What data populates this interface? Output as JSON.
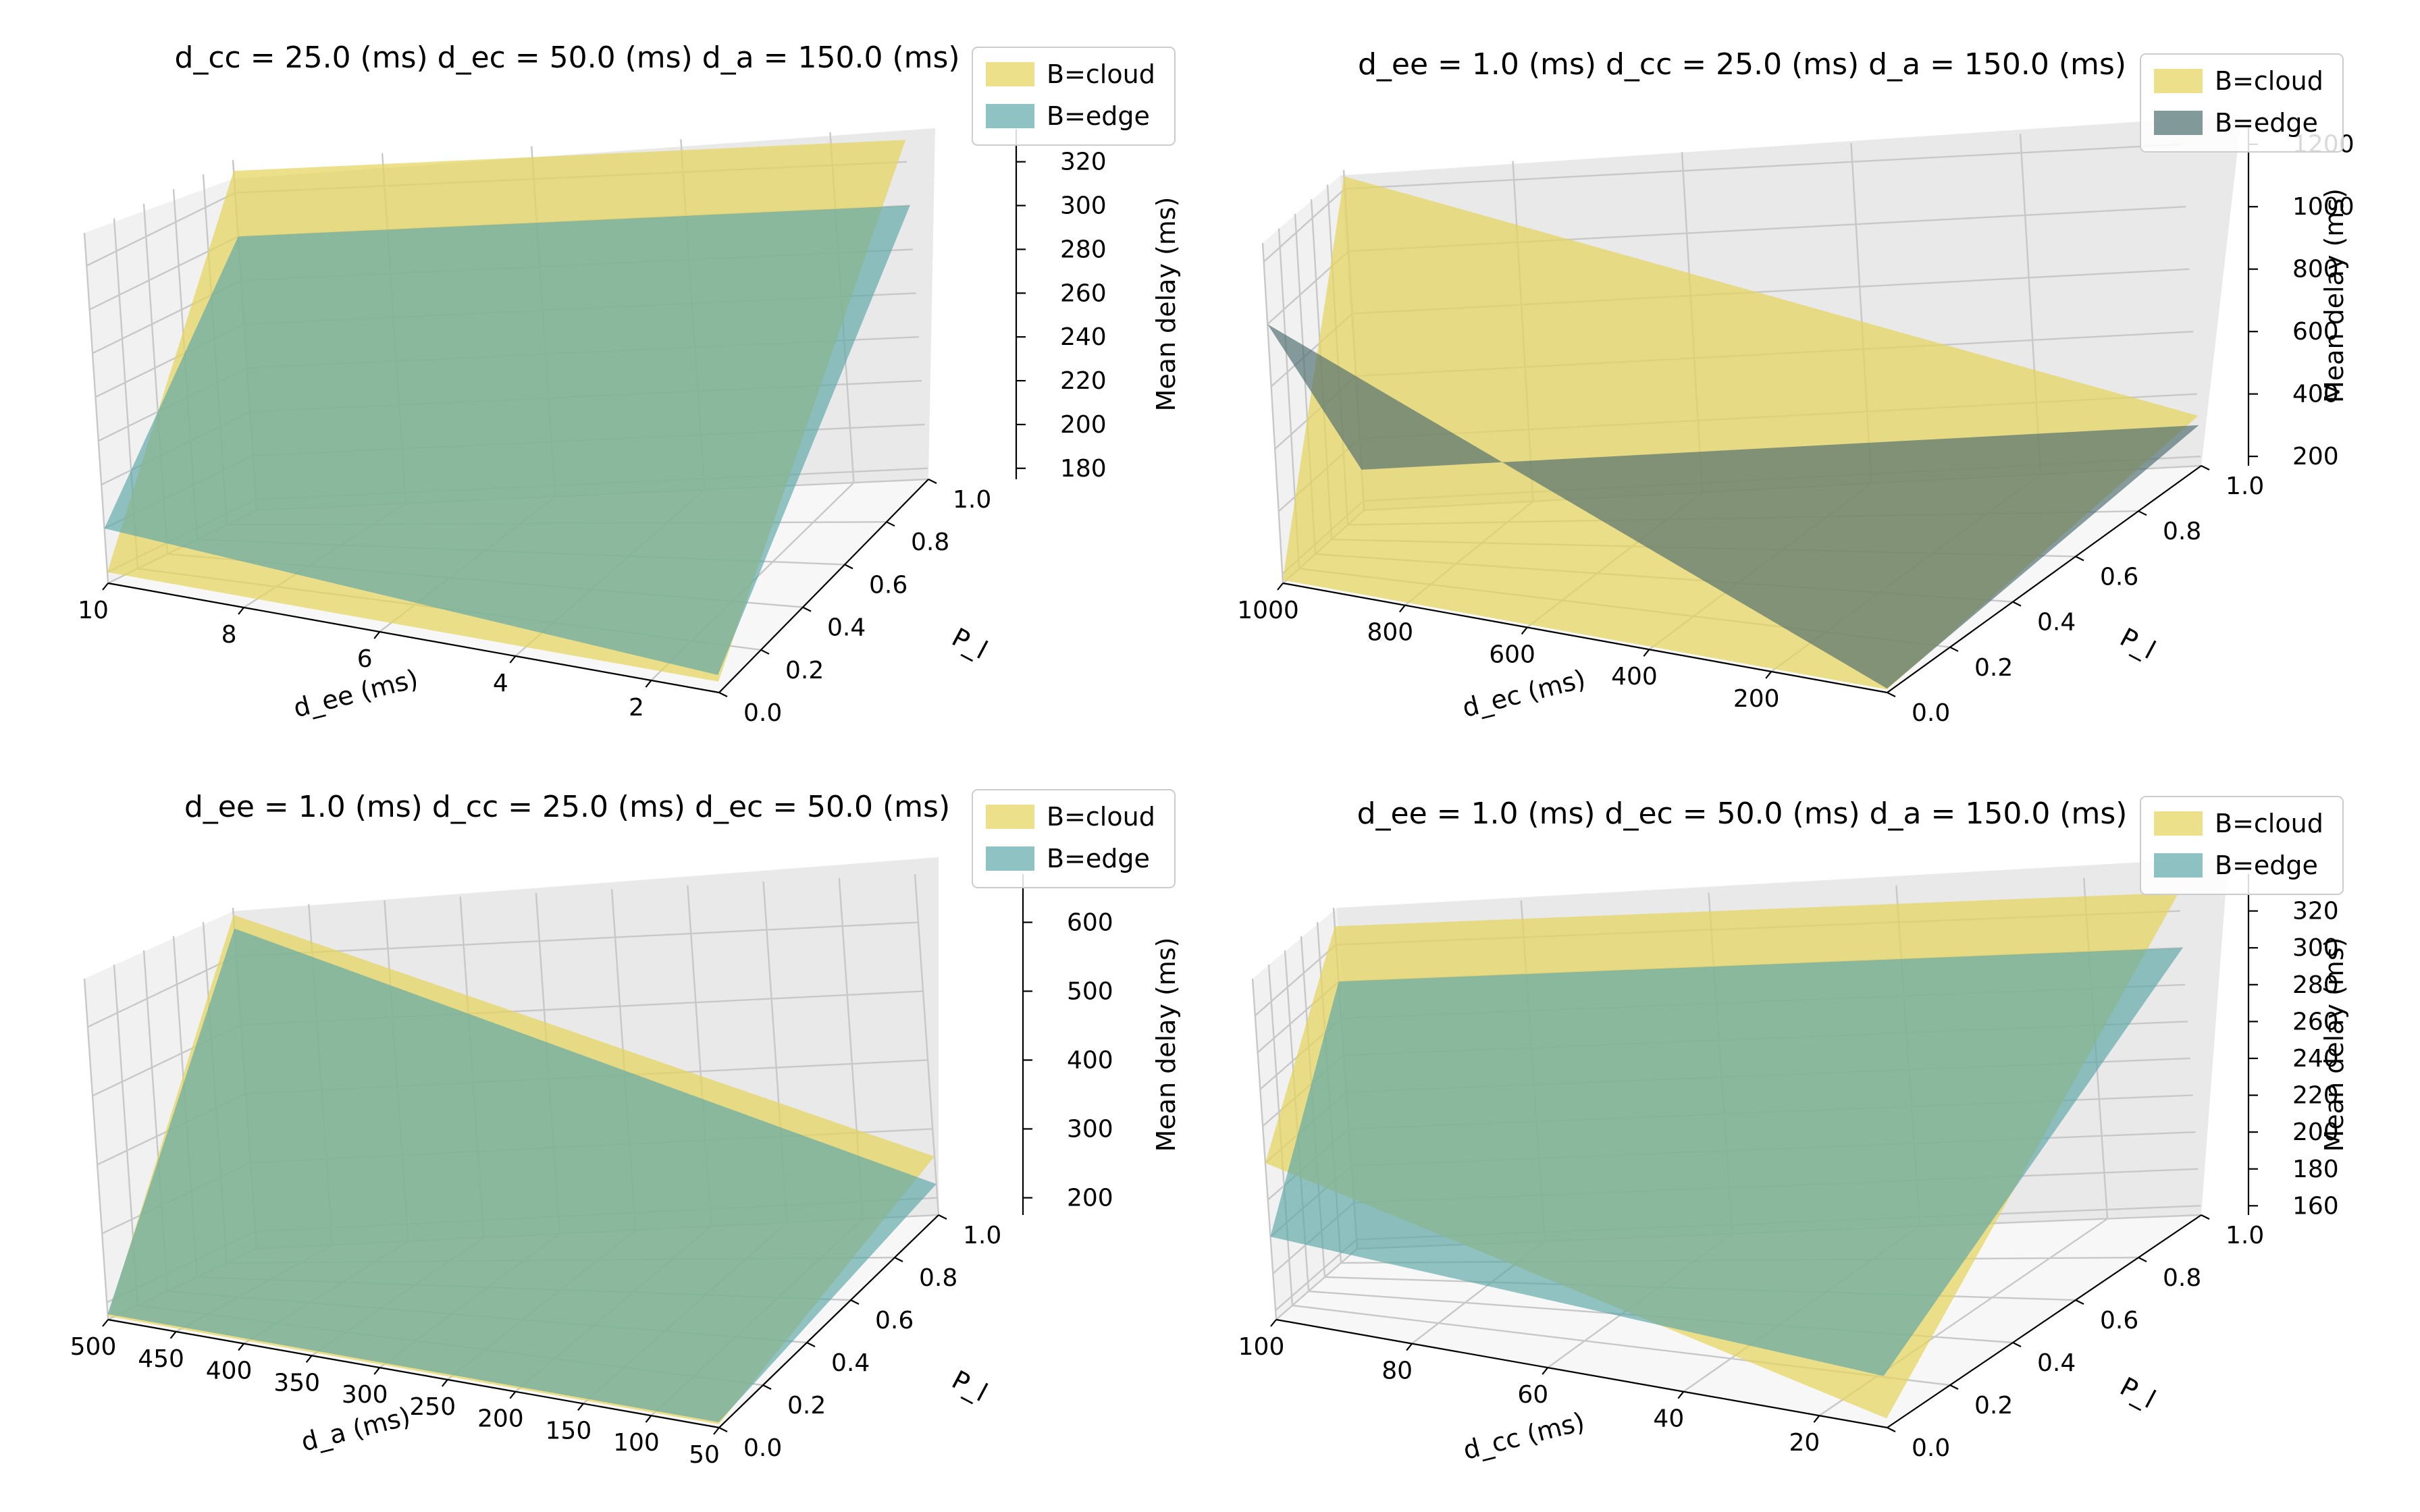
{
  "colors": {
    "cloud": "#e6d45e",
    "edge": "#5fa8a8",
    "edge_dark": "#4f6f6f",
    "pane_left": "#f1f1f1",
    "pane_right": "#e9e9e9",
    "pane_floor": "#f7f7f7"
  },
  "legend": {
    "cloud": "B=cloud",
    "edge": "B=edge"
  },
  "chart_data": [
    {
      "type": "surface",
      "title": "d_cc = 25.0 (ms) d_ec = 50.0 (ms) d_a = 150.0 (ms)",
      "xlabel": "d_ee (ms)",
      "ylabel": "P_l",
      "zlabel": "Mean delay (ms)",
      "xlim": [
        1,
        10
      ],
      "ylim": [
        0,
        1
      ],
      "zlim": [
        175,
        335
      ],
      "xticks": [
        10,
        8,
        6,
        4,
        2
      ],
      "yticks": [
        0.0,
        0.2,
        0.4,
        0.6,
        0.8,
        1.0
      ],
      "zticks": [
        180,
        200,
        220,
        240,
        260,
        280,
        300,
        320
      ],
      "series": [
        {
          "name": "B=cloud",
          "z_corners": {
            "x_min_y0": 180,
            "x_min_y1": 330,
            "x_max_y0": 180,
            "x_max_y1": 330
          }
        },
        {
          "name": "B=edge",
          "z_corners": {
            "x_min_y0": 183,
            "x_min_y1": 300,
            "x_max_y0": 200,
            "x_max_y1": 300
          }
        }
      ]
    },
    {
      "type": "surface",
      "title": "d_ee = 1.0 (ms) d_cc = 25.0 (ms) d_a = 150.0 (ms)",
      "xlabel": "d_ec (ms)",
      "ylabel": "P_l",
      "zlabel": "Mean delay (ms)",
      "xlim": [
        10,
        1000
      ],
      "ylim": [
        0,
        1
      ],
      "zlim": [
        170,
        1260
      ],
      "xticks": [
        1000,
        800,
        600,
        400,
        200
      ],
      "yticks": [
        0.0,
        0.2,
        0.4,
        0.6,
        0.8,
        1.0
      ],
      "zticks": [
        200,
        400,
        600,
        800,
        1000,
        1200
      ],
      "series": [
        {
          "name": "B=cloud",
          "z_corners": {
            "x_min_y0": 180,
            "x_min_y1": 330,
            "x_max_y0": 180,
            "x_max_y1": 1240
          }
        },
        {
          "name": "B=edge",
          "z_corners": {
            "x_min_y0": 183,
            "x_min_y1": 300,
            "x_max_y0": 1000,
            "x_max_y1": 300
          }
        }
      ]
    },
    {
      "type": "surface",
      "title": "d_ee = 1.0 (ms) d_cc = 25.0 (ms) d_ec = 50.0 (ms)",
      "xlabel": "d_a (ms)",
      "ylabel": "P_l",
      "zlabel": "Mean delay (ms)",
      "xlim": [
        50,
        500
      ],
      "ylim": [
        0,
        1
      ],
      "zlim": [
        175,
        670
      ],
      "xticks": [
        500,
        450,
        400,
        350,
        300,
        250,
        200,
        150,
        100,
        50
      ],
      "yticks": [
        0.0,
        0.2,
        0.4,
        0.6,
        0.8,
        1.0
      ],
      "zticks": [
        200,
        300,
        400,
        500,
        600
      ],
      "series": [
        {
          "name": "B=cloud",
          "z_corners": {
            "x_min_y0": 180,
            "x_min_y1": 260,
            "x_max_y0": 180,
            "x_max_y1": 660
          }
        },
        {
          "name": "B=edge",
          "z_corners": {
            "x_min_y0": 183,
            "x_min_y1": 220,
            "x_max_y0": 183,
            "x_max_y1": 640
          }
        }
      ]
    },
    {
      "type": "surface",
      "title": "d_ee = 1.0 (ms) d_ec = 50.0 (ms) d_a = 150.0 (ms)",
      "xlabel": "d_cc (ms)",
      "ylabel": "P_l",
      "zlabel": "Mean delay (ms)",
      "xlim": [
        10,
        100
      ],
      "ylim": [
        0,
        1
      ],
      "zlim": [
        155,
        340
      ],
      "xticks": [
        100,
        80,
        60,
        40,
        20
      ],
      "yticks": [
        0.0,
        0.2,
        0.4,
        0.6,
        0.8,
        1.0
      ],
      "zticks": [
        160,
        180,
        200,
        220,
        240,
        260,
        280,
        300,
        320
      ],
      "series": [
        {
          "name": "B=cloud",
          "z_corners": {
            "x_min_y0": 160,
            "x_min_y1": 330,
            "x_max_y0": 240,
            "x_max_y1": 330
          }
        },
        {
          "name": "B=edge",
          "z_corners": {
            "x_min_y0": 183,
            "x_min_y1": 300,
            "x_max_y0": 200,
            "x_max_y1": 300
          }
        }
      ]
    }
  ]
}
